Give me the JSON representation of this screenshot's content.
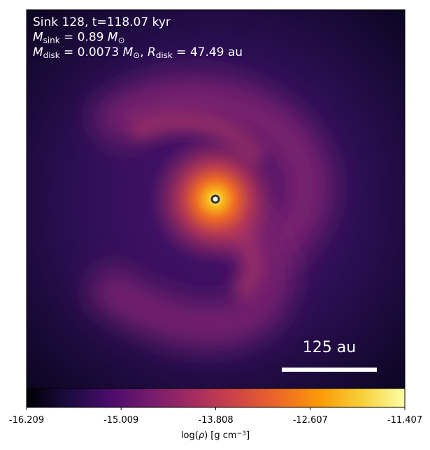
{
  "chart_data": {
    "type": "image",
    "annotations": [
      [
        {
          "text": "Sink 128, t=118.07 kyr"
        }
      ],
      [
        {
          "italic": "M"
        },
        {
          "sub": "sink"
        },
        {
          "text": " = 0.89 "
        },
        {
          "italic": "M"
        },
        {
          "sub": "⊙"
        }
      ],
      [
        {
          "italic": "M"
        },
        {
          "sub": "disk"
        },
        {
          "text": " = 0.0073 "
        },
        {
          "italic": "M"
        },
        {
          "sub": "⊙"
        },
        {
          "text": ", "
        },
        {
          "italic": "R"
        },
        {
          "sub": "disk"
        },
        {
          "text": " = 47.49 au"
        }
      ]
    ],
    "scale_bar_label": "125 au",
    "colorbar": {
      "label": [
        {
          "text": "log("
        },
        {
          "italic": "ρ"
        },
        {
          "text": ") [g cm"
        },
        {
          "sup": "−3"
        },
        {
          "text": "]"
        }
      ],
      "lim": [
        -16.209,
        -11.407
      ],
      "ticks": [
        -16.209,
        -15.009,
        -13.808,
        -12.607,
        -11.407
      ],
      "colormap": [
        "#000004",
        "#1b0c41",
        "#4a0c6b",
        "#781c6d",
        "#a52c60",
        "#cf4446",
        "#ed6925",
        "#fb9b06",
        "#f7d13d",
        "#fcffa4"
      ]
    }
  }
}
